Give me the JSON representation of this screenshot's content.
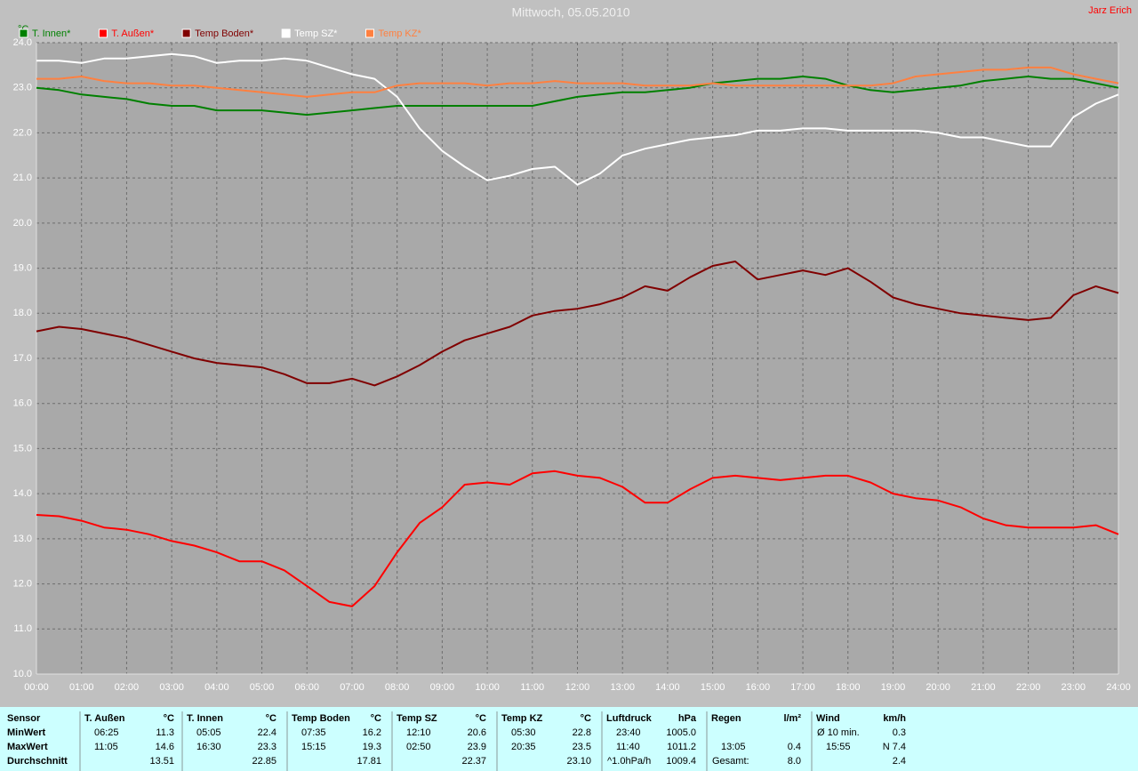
{
  "chart_data": {
    "type": "line",
    "title": "Mittwoch, 05.05.2010",
    "author": "Jarz Erich",
    "y_label": "°C",
    "x": [
      0,
      0.5,
      1,
      1.5,
      2,
      2.5,
      3,
      3.5,
      4,
      4.5,
      5,
      5.5,
      6,
      6.5,
      7,
      7.5,
      8,
      8.5,
      9,
      9.5,
      10,
      10.5,
      11,
      11.5,
      12,
      12.5,
      13,
      13.5,
      14,
      14.5,
      15,
      15.5,
      16,
      16.5,
      17,
      17.5,
      18,
      18.5,
      19,
      19.5,
      20,
      20.5,
      21,
      21.5,
      22,
      22.5,
      23,
      23.5,
      24
    ],
    "series": [
      {
        "name": "T. Innen*",
        "color": "#008000",
        "values": [
          23.0,
          22.95,
          22.85,
          22.8,
          22.75,
          22.65,
          22.6,
          22.6,
          22.5,
          22.5,
          22.5,
          22.45,
          22.4,
          22.45,
          22.5,
          22.55,
          22.6,
          22.6,
          22.6,
          22.6,
          22.6,
          22.6,
          22.6,
          22.7,
          22.8,
          22.85,
          22.9,
          22.9,
          22.95,
          23.0,
          23.1,
          23.15,
          23.2,
          23.2,
          23.25,
          23.2,
          23.05,
          22.95,
          22.9,
          22.95,
          23.0,
          23.05,
          23.15,
          23.2,
          23.25,
          23.2,
          23.2,
          23.1,
          23.0
        ]
      },
      {
        "name": "T. Außen*",
        "color": "#ff0000",
        "values": [
          13.53,
          13.5,
          13.4,
          13.25,
          13.2,
          13.1,
          12.95,
          12.85,
          12.7,
          12.5,
          12.5,
          12.3,
          11.95,
          11.6,
          11.5,
          11.95,
          12.7,
          13.35,
          13.7,
          14.2,
          14.25,
          14.2,
          14.45,
          14.5,
          14.4,
          14.35,
          14.15,
          13.8,
          13.8,
          14.1,
          14.35,
          14.4,
          14.35,
          14.3,
          14.35,
          14.4,
          14.4,
          14.25,
          14.0,
          13.9,
          13.85,
          13.7,
          13.45,
          13.3,
          13.25,
          13.25,
          13.25,
          13.3,
          13.1
        ]
      },
      {
        "name": "Temp Boden*",
        "color": "#800000",
        "values": [
          17.6,
          17.7,
          17.65,
          17.55,
          17.45,
          17.3,
          17.15,
          17.0,
          16.9,
          16.85,
          16.8,
          16.65,
          16.45,
          16.45,
          16.55,
          16.4,
          16.6,
          16.85,
          17.15,
          17.4,
          17.55,
          17.7,
          17.95,
          18.05,
          18.1,
          18.2,
          18.35,
          18.6,
          18.5,
          18.8,
          19.05,
          19.15,
          18.75,
          18.85,
          18.95,
          18.85,
          19.0,
          18.7,
          18.35,
          18.2,
          18.1,
          18.0,
          17.95,
          17.9,
          17.85,
          17.9,
          18.4,
          18.6,
          18.45
        ]
      },
      {
        "name": "Temp SZ*",
        "color": "#ffffff",
        "values": [
          23.6,
          23.6,
          23.55,
          23.65,
          23.65,
          23.7,
          23.75,
          23.7,
          23.55,
          23.6,
          23.6,
          23.65,
          23.6,
          23.45,
          23.3,
          23.2,
          22.8,
          22.1,
          21.6,
          21.25,
          20.95,
          21.05,
          21.2,
          21.25,
          20.85,
          21.1,
          21.5,
          21.65,
          21.75,
          21.85,
          21.9,
          21.95,
          22.05,
          22.05,
          22.1,
          22.1,
          22.05,
          22.05,
          22.05,
          22.05,
          22.0,
          21.9,
          21.9,
          21.8,
          21.7,
          21.7,
          22.35,
          22.65,
          22.85
        ]
      },
      {
        "name": "Temp KZ*",
        "color": "#ff8040",
        "values": [
          23.2,
          23.2,
          23.25,
          23.15,
          23.1,
          23.1,
          23.05,
          23.05,
          23.0,
          22.95,
          22.9,
          22.85,
          22.8,
          22.85,
          22.9,
          22.9,
          23.05,
          23.1,
          23.1,
          23.1,
          23.05,
          23.1,
          23.1,
          23.15,
          23.1,
          23.1,
          23.1,
          23.05,
          23.05,
          23.05,
          23.1,
          23.05,
          23.05,
          23.05,
          23.05,
          23.05,
          23.05,
          23.05,
          23.1,
          23.25,
          23.3,
          23.35,
          23.4,
          23.4,
          23.45,
          23.45,
          23.3,
          23.2,
          23.1
        ]
      }
    ],
    "xlim": [
      0,
      24
    ],
    "xticks": [
      {
        "value": 0,
        "label": "00:00"
      },
      {
        "value": 1,
        "label": "01:00"
      },
      {
        "value": 2,
        "label": "02:00"
      },
      {
        "value": 3,
        "label": "03:00"
      },
      {
        "value": 4,
        "label": "04:00"
      },
      {
        "value": 5,
        "label": "05:00"
      },
      {
        "value": 6,
        "label": "06:00"
      },
      {
        "value": 7,
        "label": "07:00"
      },
      {
        "value": 8,
        "label": "08:00"
      },
      {
        "value": 9,
        "label": "09:00"
      },
      {
        "value": 10,
        "label": "10:00"
      },
      {
        "value": 11,
        "label": "11:00"
      },
      {
        "value": 12,
        "label": "12:00"
      },
      {
        "value": 13,
        "label": "13:00"
      },
      {
        "value": 14,
        "label": "14:00"
      },
      {
        "value": 15,
        "label": "15:00"
      },
      {
        "value": 16,
        "label": "16:00"
      },
      {
        "value": 17,
        "label": "17:00"
      },
      {
        "value": 18,
        "label": "18:00"
      },
      {
        "value": 19,
        "label": "19:00"
      },
      {
        "value": 20,
        "label": "20:00"
      },
      {
        "value": 21,
        "label": "21:00"
      },
      {
        "value": 22,
        "label": "22:00"
      },
      {
        "value": 23,
        "label": "23:00"
      },
      {
        "value": 24,
        "label": "24:00"
      }
    ],
    "ylim": [
      10,
      24
    ],
    "yticks": [
      {
        "value": 10,
        "label": "10.0"
      },
      {
        "value": 11,
        "label": "11.0"
      },
      {
        "value": 12,
        "label": "12.0"
      },
      {
        "value": 13,
        "label": "13.0"
      },
      {
        "value": 14,
        "label": "14.0"
      },
      {
        "value": 15,
        "label": "15.0"
      },
      {
        "value": 16,
        "label": "16.0"
      },
      {
        "value": 17,
        "label": "17.0"
      },
      {
        "value": 18,
        "label": "18.0"
      },
      {
        "value": 19,
        "label": "19.0"
      },
      {
        "value": 20,
        "label": "20.0"
      },
      {
        "value": 21,
        "label": "21.0"
      },
      {
        "value": 22,
        "label": "22.0"
      },
      {
        "value": 23,
        "label": "23.0"
      },
      {
        "value": 24,
        "label": "24.0"
      }
    ],
    "grid": true
  },
  "table": {
    "corner": "Sensor",
    "groups": [
      {
        "name": "T. Außen",
        "unit": "°C"
      },
      {
        "name": "T. Innen",
        "unit": "°C"
      },
      {
        "name": "Temp Boden",
        "unit": "°C"
      },
      {
        "name": "Temp SZ",
        "unit": "°C"
      },
      {
        "name": "Temp KZ",
        "unit": "°C"
      },
      {
        "name": "Luftdruck",
        "unit": "hPa"
      },
      {
        "name": "Regen",
        "unit": "l/m²"
      },
      {
        "name": "Wind",
        "unit": "km/h"
      }
    ],
    "rows": [
      {
        "label": "MinWert",
        "cells": [
          [
            "06:25",
            "11.3"
          ],
          [
            "05:05",
            "22.4"
          ],
          [
            "07:35",
            "16.2"
          ],
          [
            "12:10",
            "20.6"
          ],
          [
            "05:30",
            "22.8"
          ],
          [
            "23:40",
            "1005.0"
          ],
          [
            null,
            null
          ],
          [
            "Ø 10 min.",
            "0.3"
          ]
        ]
      },
      {
        "label": "MaxWert",
        "cells": [
          [
            "11:05",
            "14.6"
          ],
          [
            "16:30",
            "23.3"
          ],
          [
            "15:15",
            "19.3"
          ],
          [
            "02:50",
            "23.9"
          ],
          [
            "20:35",
            "23.5"
          ],
          [
            "11:40",
            "1011.2"
          ],
          [
            "13:05",
            "0.4"
          ],
          [
            "15:55",
            "N 7.4"
          ]
        ]
      },
      {
        "label": "Durchschnitt",
        "cells": [
          [
            null,
            "13.51"
          ],
          [
            null,
            "22.85"
          ],
          [
            null,
            "17.81"
          ],
          [
            null,
            "22.37"
          ],
          [
            null,
            "23.10"
          ],
          [
            "^1.0hPa/h",
            "1009.4"
          ],
          [
            "Gesamt:",
            "8.0"
          ],
          [
            null,
            "2.4"
          ]
        ]
      }
    ]
  }
}
